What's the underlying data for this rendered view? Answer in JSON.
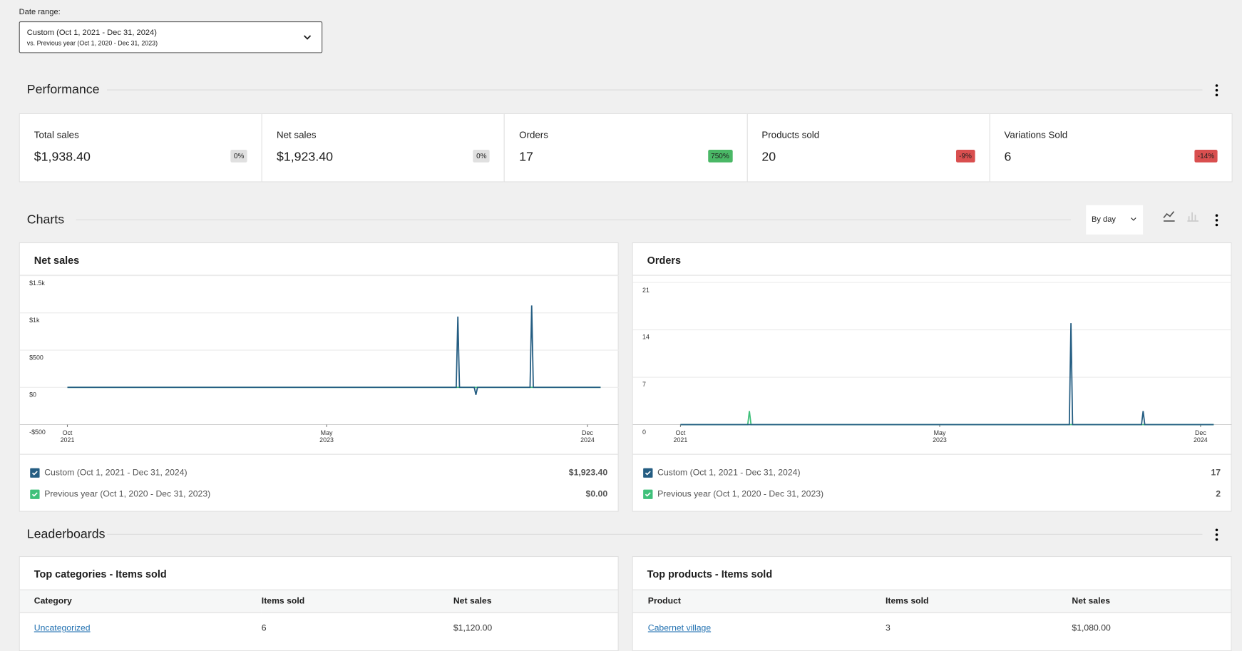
{
  "date_range": {
    "label": "Date range:",
    "value": "Custom (Oct 1, 2021 - Dec 31, 2024)",
    "compare": "vs. Previous year (Oct 1, 2020 - Dec 31, 2023)"
  },
  "performance": {
    "title": "Performance",
    "cards": [
      {
        "label": "Total sales",
        "value": "$1,938.40",
        "delta": "0%",
        "delta_color": "#e0e0e0"
      },
      {
        "label": "Net sales",
        "value": "$1,923.40",
        "delta": "0%",
        "delta_color": "#e0e0e0"
      },
      {
        "label": "Orders",
        "value": "17",
        "delta": "750%",
        "delta_color": "#4ab866"
      },
      {
        "label": "Products sold",
        "value": "20",
        "delta": "-9%",
        "delta_color": "#d94f4f"
      },
      {
        "label": "Variations Sold",
        "value": "6",
        "delta": "-14%",
        "delta_color": "#d94f4f"
      }
    ]
  },
  "charts_section": {
    "title": "Charts",
    "interval": "By day"
  },
  "chart_data": [
    {
      "type": "line",
      "title": "Net sales",
      "x": [
        2021.75,
        2024.12,
        2024.13,
        2024.14,
        2024.23,
        2024.24,
        2024.25,
        2024.57,
        2024.58,
        2024.59,
        2025.0
      ],
      "series": [
        {
          "name": "Custom (Oct 1, 2021 - Dec 31, 2024)",
          "color": "#245d82",
          "total": "$1,923.40",
          "values": [
            0,
            0,
            950,
            0,
            0,
            -100,
            0,
            0,
            1100,
            0,
            0
          ]
        },
        {
          "name": "Previous year (Oct 1, 2020 - Dec 31, 2023)",
          "color": "#3fc07a",
          "total": "$0.00",
          "values": [
            0,
            0,
            0,
            0,
            0,
            0,
            0,
            0,
            0,
            0,
            0
          ]
        }
      ],
      "xlim": [
        2021.46,
        2025.11
      ],
      "xticks": [
        {
          "value": 2021.75,
          "label": "Oct 2021"
        },
        {
          "value": 2023.33,
          "label": "May 2023"
        },
        {
          "value": 2024.92,
          "label": "Dec 2024"
        }
      ],
      "ylim": [
        -500,
        1500
      ],
      "yticks": [
        {
          "value": -500,
          "label": "-$500"
        },
        {
          "value": 0,
          "label": "$0"
        },
        {
          "value": 500,
          "label": "$500"
        },
        {
          "value": 1000,
          "label": "$1k"
        },
        {
          "value": 1500,
          "label": "$1.5k"
        }
      ],
      "grid": true
    },
    {
      "type": "line",
      "title": "Orders",
      "x": [
        2021.75,
        2022.16,
        2022.17,
        2022.18,
        2024.12,
        2024.13,
        2024.14,
        2024.56,
        2024.57,
        2024.58,
        2025.0
      ],
      "series": [
        {
          "name": "Custom (Oct 1, 2021 - Dec 31, 2024)",
          "color": "#245d82",
          "total": "17",
          "values": [
            0,
            0,
            0,
            0,
            0,
            15,
            0,
            0,
            2,
            0,
            0
          ]
        },
        {
          "name": "Previous year (Oct 1, 2020 - Dec 31, 2023)",
          "color": "#3fc07a",
          "total": "2",
          "values": [
            0,
            0,
            2,
            0,
            0,
            0,
            0,
            0,
            0,
            0,
            0
          ]
        }
      ],
      "xlim": [
        2021.46,
        2025.11
      ],
      "xticks": [
        {
          "value": 2021.75,
          "label": "Oct 2021"
        },
        {
          "value": 2023.33,
          "label": "May 2023"
        },
        {
          "value": 2024.92,
          "label": "Dec 2024"
        }
      ],
      "ylim": [
        0,
        22
      ],
      "yticks": [
        0,
        7,
        14,
        21
      ],
      "grid": true
    }
  ],
  "leaderboards": {
    "title": "Leaderboards",
    "tables": [
      {
        "title": "Top categories - Items sold",
        "headers": [
          "Category",
          "Items sold",
          "Net sales"
        ],
        "rows": [
          [
            "Uncategorized",
            "6",
            "$1,120.00"
          ]
        ]
      },
      {
        "title": "Top products - Items sold",
        "headers": [
          "Product",
          "Items sold",
          "Net sales"
        ],
        "rows": [
          [
            "Cabernet village",
            "3",
            "$1,080.00"
          ]
        ]
      }
    ]
  }
}
